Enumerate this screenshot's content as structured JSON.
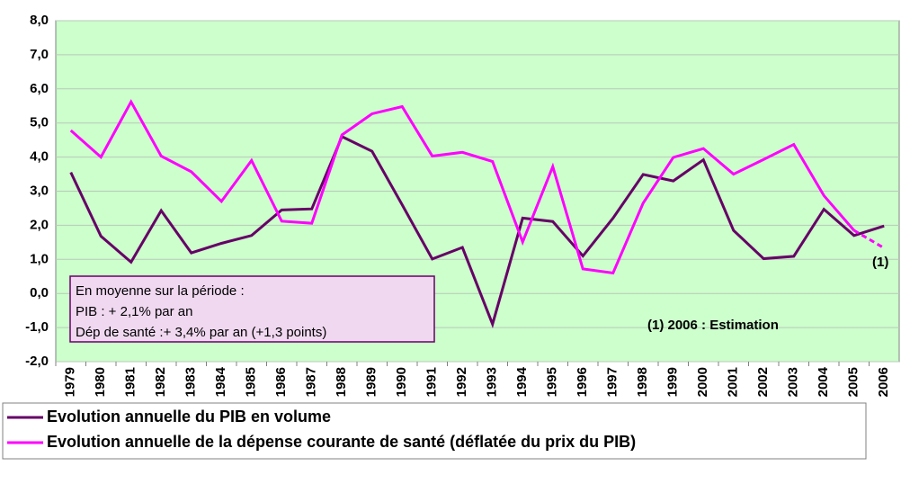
{
  "chart_data": {
    "type": "line",
    "categories": [
      "1979",
      "1980",
      "1981",
      "1982",
      "1983",
      "1984",
      "1985",
      "1986",
      "1987",
      "1988",
      "1989",
      "1990",
      "1991",
      "1992",
      "1993",
      "1994",
      "1995",
      "1996",
      "1997",
      "1998",
      "1999",
      "2000",
      "2001",
      "2002",
      "2003",
      "2004",
      "2005",
      "2006"
    ],
    "series": [
      {
        "name": "Evolution annuelle du PIB en volume",
        "color": "#660066",
        "values": [
          3.55,
          1.68,
          0.92,
          2.43,
          1.19,
          1.47,
          1.7,
          2.45,
          2.48,
          4.6,
          4.17,
          2.6,
          1.01,
          1.35,
          -0.9,
          2.21,
          2.11,
          1.1,
          2.21,
          3.49,
          3.3,
          3.92,
          1.85,
          1.02,
          1.09,
          2.47,
          1.7,
          1.98
        ]
      },
      {
        "name": "Evolution annuelle de la dépense courante de santé (déflatée du prix du PIB)",
        "color": "#ff00ff",
        "values": [
          4.78,
          4.0,
          5.62,
          4.03,
          3.57,
          2.7,
          3.9,
          2.12,
          2.06,
          4.65,
          5.27,
          5.48,
          4.03,
          4.14,
          3.87,
          1.51,
          3.72,
          0.72,
          0.6,
          2.65,
          3.99,
          4.25,
          3.5,
          3.93,
          4.37,
          2.87,
          1.85,
          1.33
        ]
      }
    ],
    "ylim": [
      -2,
      8
    ],
    "yticks": [
      {
        "value": -2,
        "label": "-2,0"
      },
      {
        "value": -1,
        "label": "-1,0"
      },
      {
        "value": 0,
        "label": "0,0"
      },
      {
        "value": 1,
        "label": "1,0"
      },
      {
        "value": 2,
        "label": "2,0"
      },
      {
        "value": 3,
        "label": "3,0"
      },
      {
        "value": 4,
        "label": "4,0"
      },
      {
        "value": 5,
        "label": "5,0"
      },
      {
        "value": 6,
        "label": "6,0"
      },
      {
        "value": 7,
        "label": "7,0"
      },
      {
        "value": 8,
        "label": "8,0"
      }
    ],
    "grid": true,
    "annotations": [
      "En moyenne sur la période :",
      "PIB : + 2,1% par an",
      "Dép de santé :+ 3,4% par an (+1,3 points)",
      "(1) 2006 : Estimation",
      "(1)"
    ]
  }
}
